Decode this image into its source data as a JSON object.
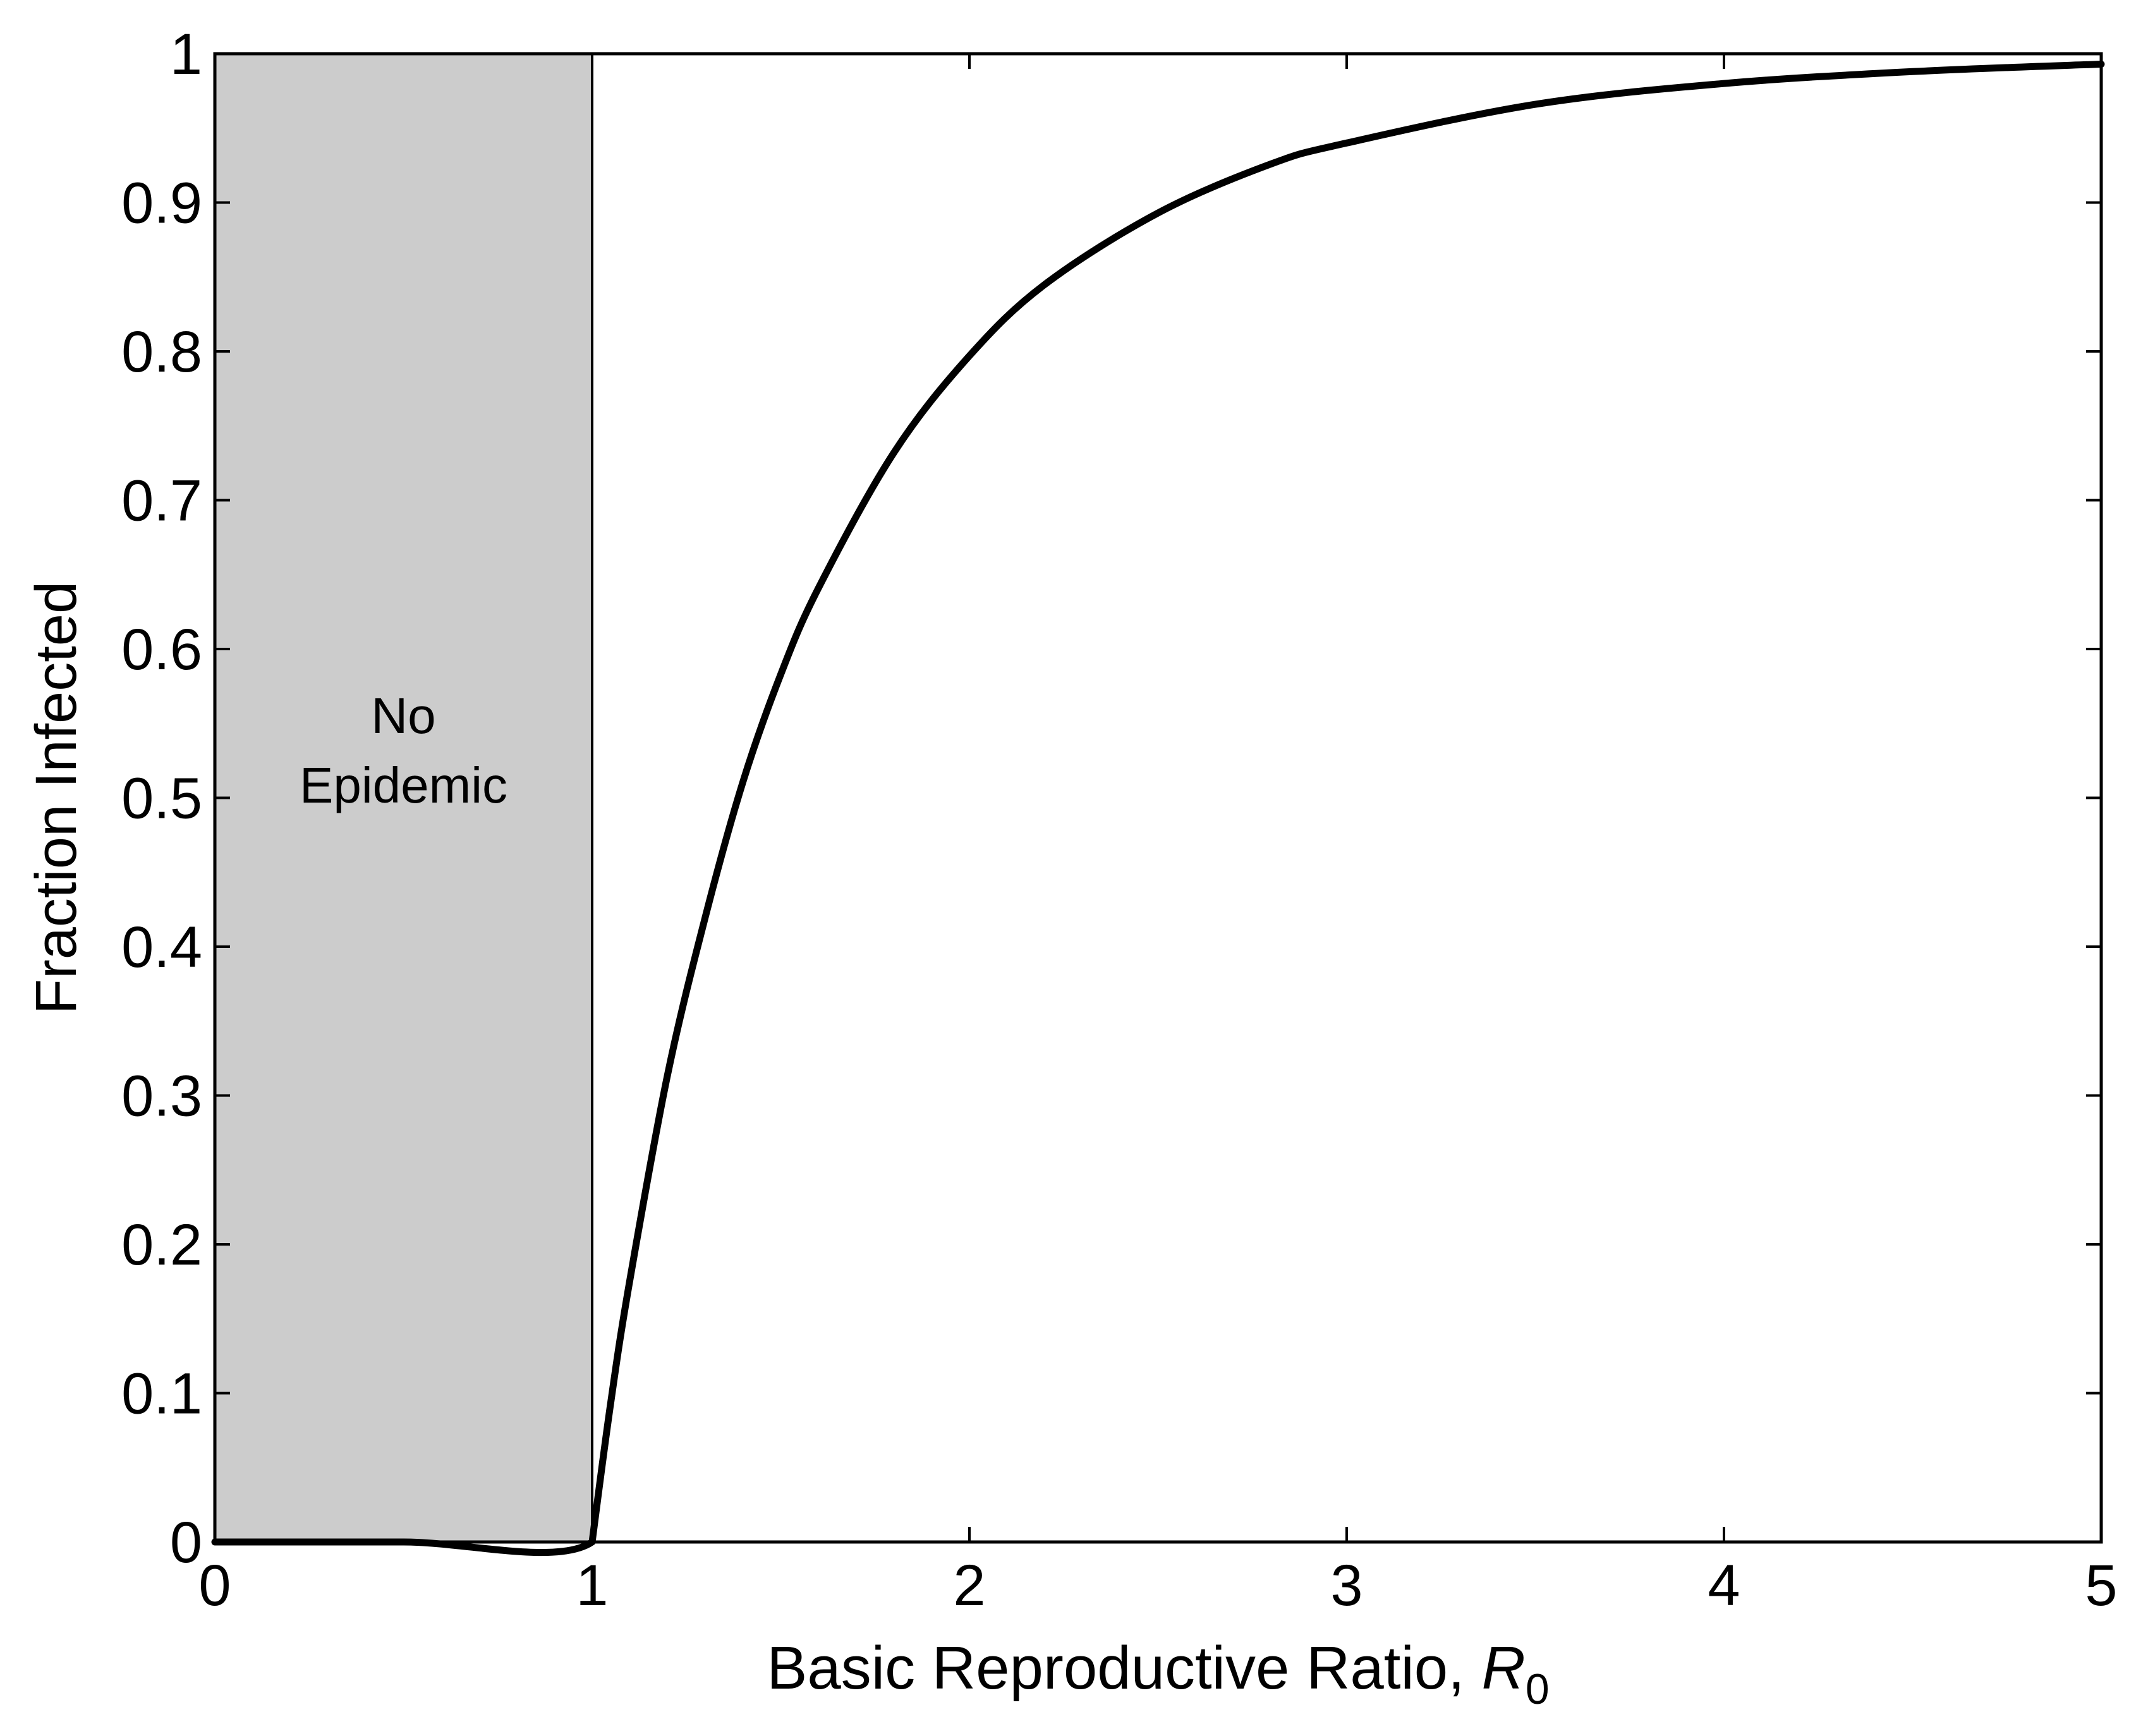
{
  "chart_data": {
    "type": "line",
    "title": "",
    "xlabel": "Basic Reproductive Ratio, ",
    "xlabel_symbol": "R",
    "xlabel_subscript": "0",
    "ylabel": "Fraction Infected",
    "xlim": [
      0,
      5
    ],
    "ylim": [
      0,
      1
    ],
    "grid": false,
    "x_ticks": [
      "0",
      "1",
      "2",
      "3",
      "4",
      "5"
    ],
    "y_ticks": [
      "0",
      "0.1",
      "0.2",
      "0.3",
      "0.4",
      "0.5",
      "0.6",
      "0.7",
      "0.8",
      "0.9",
      "1"
    ],
    "shaded_region": {
      "x_range": [
        0,
        1
      ],
      "label_lines": [
        "No",
        "Epidemic"
      ],
      "color": "#cccccc"
    },
    "series": [
      {
        "x": [
          0,
          0.5,
          1.0,
          1.05,
          1.1,
          1.2,
          1.3,
          1.4,
          1.5,
          1.6,
          1.8,
          2.0,
          2.2,
          2.5,
          2.8,
          3.0,
          3.5,
          4.0,
          4.5,
          5.0
        ],
        "values": [
          0,
          0,
          0,
          0.095,
          0.176,
          0.314,
          0.42,
          0.511,
          0.583,
          0.641,
          0.732,
          0.797,
          0.845,
          0.893,
          0.926,
          0.94,
          0.966,
          0.98,
          0.988,
          0.993
        ]
      }
    ],
    "colors": {
      "line": "#000000",
      "axis": "#000000",
      "background": "#ffffff"
    }
  }
}
